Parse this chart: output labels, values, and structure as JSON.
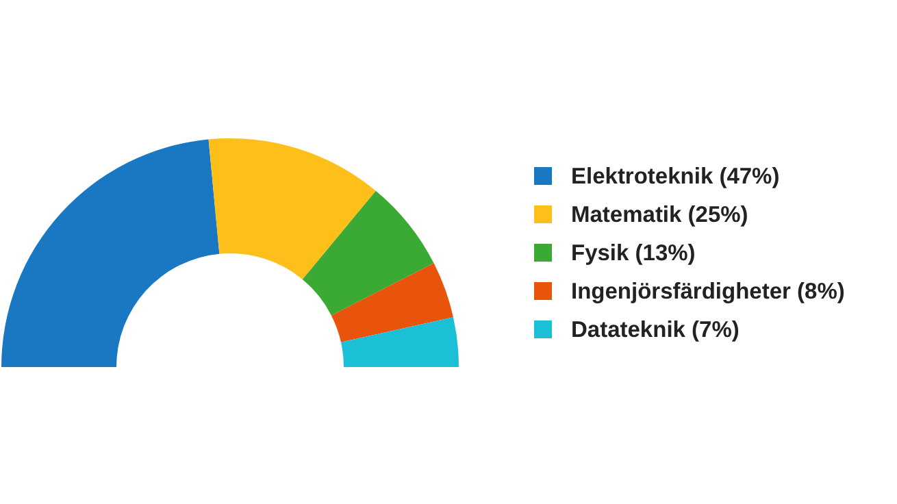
{
  "chart_data": {
    "type": "donut",
    "categories": [
      "Elektroteknik",
      "Matematik",
      "Fysik",
      "Ingenjörsfärdigheter",
      "Datateknik"
    ],
    "values": [
      47,
      25,
      13,
      8,
      7
    ],
    "value_labels": [
      "(47%)",
      "(25%)",
      "(13%)",
      "(8%)",
      "(7%)"
    ],
    "colors": [
      "#1a78c2",
      "#fdc01a",
      "#3aaa35",
      "#e8540c",
      "#1bc0d6"
    ],
    "legend": "right"
  }
}
